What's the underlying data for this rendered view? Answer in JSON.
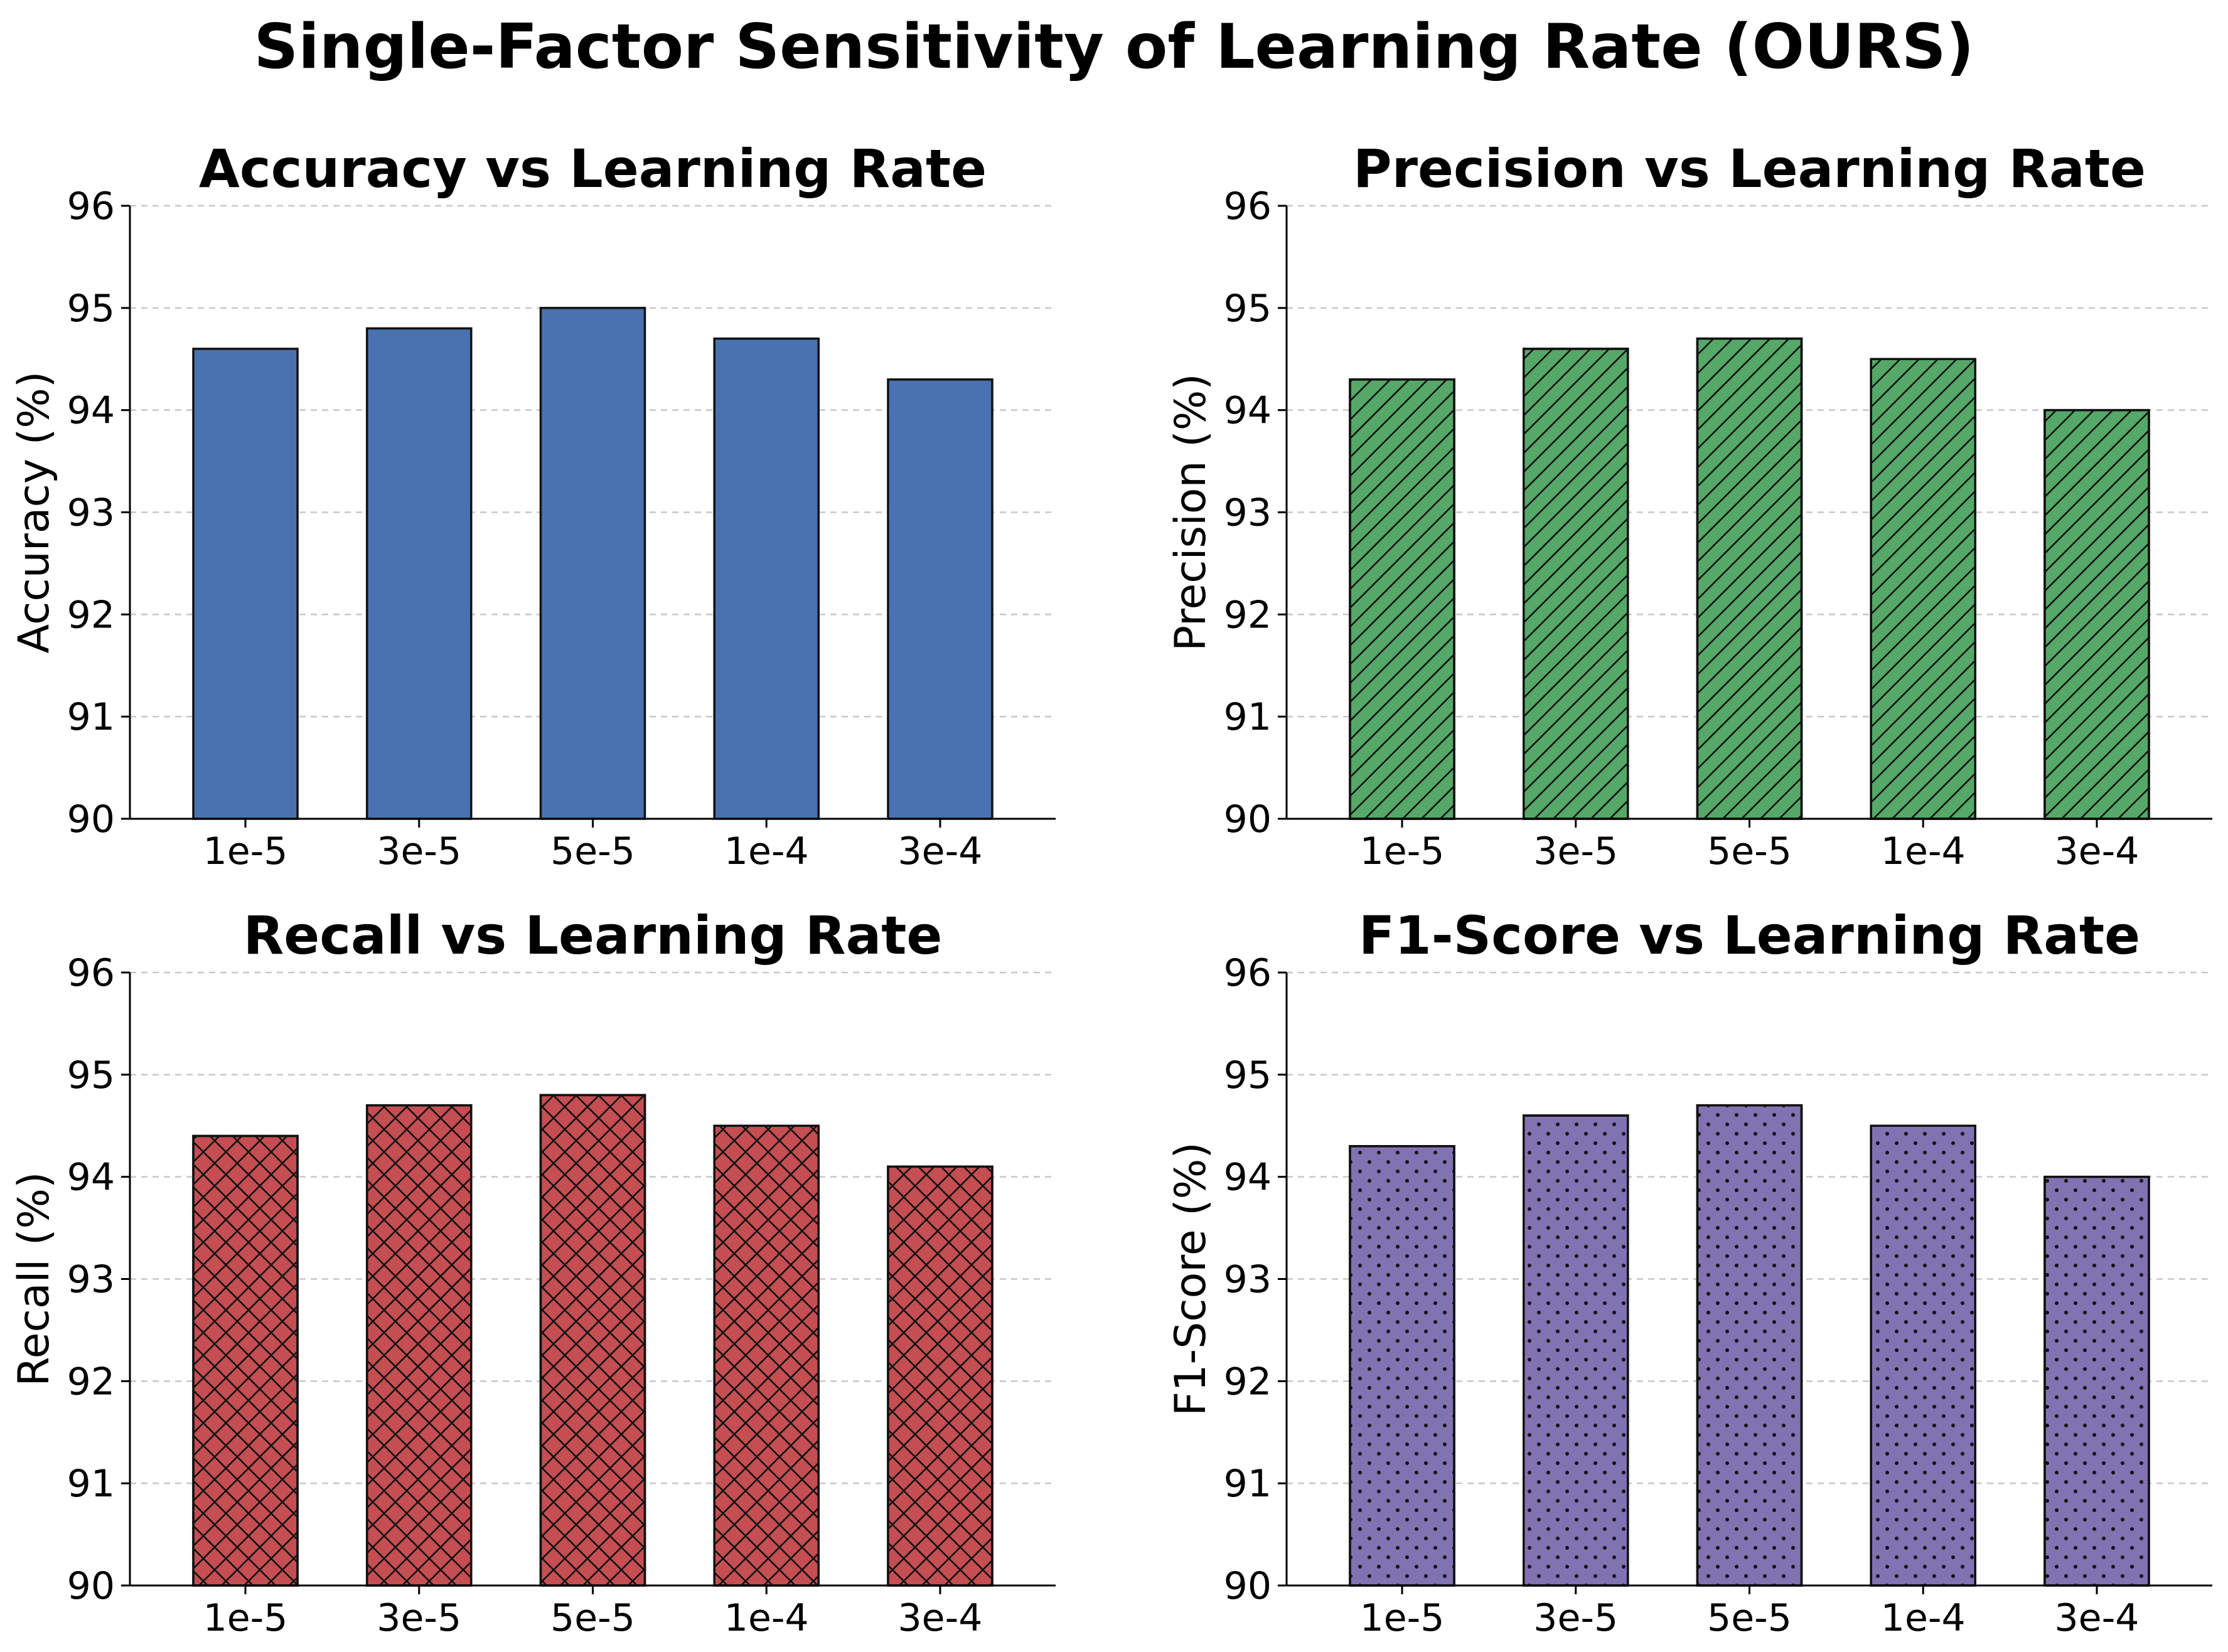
{
  "title": "Single-Factor Sensitivity of Learning Rate (OURS)",
  "chart_data": [
    {
      "type": "bar",
      "title": "Accuracy vs Learning Rate",
      "xlabel": "",
      "ylabel": "Accuracy (%)",
      "categories": [
        "1e-5",
        "3e-5",
        "5e-5",
        "1e-4",
        "3e-4"
      ],
      "values": [
        94.6,
        94.8,
        95.0,
        94.7,
        94.3
      ],
      "ylim": [
        90,
        96
      ],
      "yticks": [
        90,
        91,
        92,
        93,
        94,
        95,
        96
      ],
      "grid": true,
      "color": "#4a72b0",
      "hatch": "none"
    },
    {
      "type": "bar",
      "title": "Precision vs Learning Rate",
      "xlabel": "",
      "ylabel": "Precision (%)",
      "categories": [
        "1e-5",
        "3e-5",
        "5e-5",
        "1e-4",
        "3e-4"
      ],
      "values": [
        94.3,
        94.6,
        94.7,
        94.5,
        94.0
      ],
      "ylim": [
        90,
        96
      ],
      "yticks": [
        90,
        91,
        92,
        93,
        94,
        95,
        96
      ],
      "grid": true,
      "color": "#55a868",
      "hatch": "diagonal"
    },
    {
      "type": "bar",
      "title": "Recall vs Learning Rate",
      "xlabel": "",
      "ylabel": "Recall (%)",
      "categories": [
        "1e-5",
        "3e-5",
        "5e-5",
        "1e-4",
        "3e-4"
      ],
      "values": [
        94.4,
        94.7,
        94.8,
        94.5,
        94.1
      ],
      "ylim": [
        90,
        96
      ],
      "yticks": [
        90,
        91,
        92,
        93,
        94,
        95,
        96
      ],
      "grid": true,
      "color": "#c44e52",
      "hatch": "crosshatch"
    },
    {
      "type": "bar",
      "title": "F1-Score vs Learning Rate",
      "xlabel": "",
      "ylabel": "F1-Score (%)",
      "categories": [
        "1e-5",
        "3e-5",
        "5e-5",
        "1e-4",
        "3e-4"
      ],
      "values": [
        94.3,
        94.6,
        94.7,
        94.5,
        94.0
      ],
      "ylim": [
        90,
        96
      ],
      "yticks": [
        90,
        91,
        92,
        93,
        94,
        95,
        96
      ],
      "grid": true,
      "color": "#8172b2",
      "hatch": "dots"
    }
  ]
}
